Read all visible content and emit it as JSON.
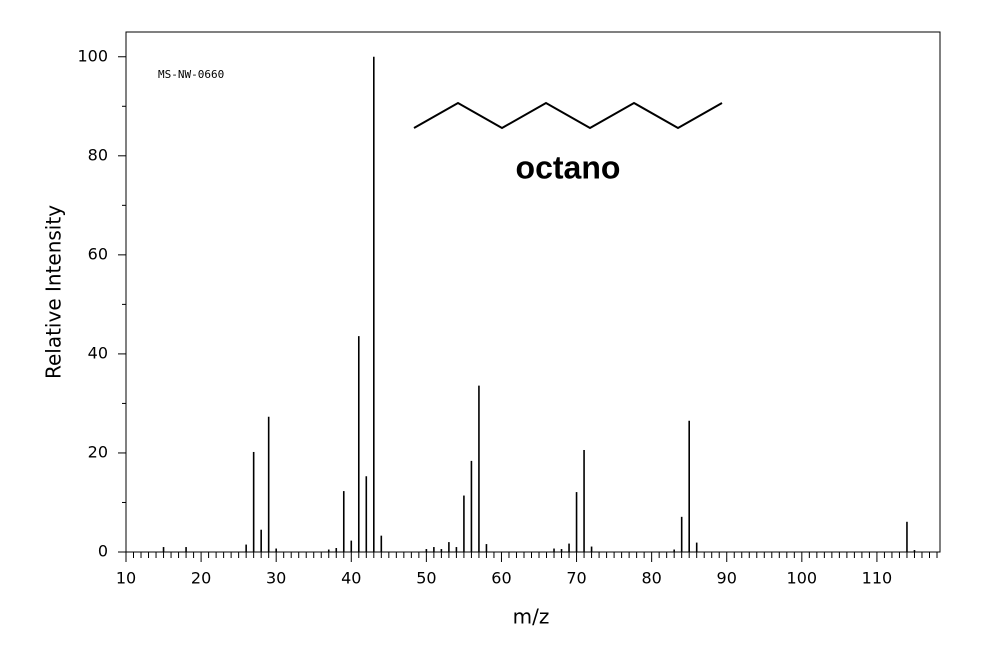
{
  "chart_data": {
    "type": "spectrum",
    "code": "MS-NW-0660",
    "compound": "octano",
    "xlabel": "m/z",
    "ylabel": "Relative Intensity",
    "x": [
      15,
      18,
      26,
      27,
      28,
      29,
      30,
      37,
      38,
      39,
      40,
      41,
      42,
      43,
      44,
      50,
      51,
      52,
      53,
      54,
      55,
      56,
      57,
      58,
      67,
      68,
      69,
      70,
      71,
      72,
      83,
      84,
      85,
      86,
      114,
      115
    ],
    "values": [
      1,
      1,
      1.5,
      20.2,
      4.5,
      27.3,
      0.7,
      0.5,
      0.8,
      12.3,
      2.3,
      43.6,
      15.3,
      100,
      3.3,
      0.6,
      1,
      0.6,
      2,
      1,
      11.4,
      18.4,
      33.6,
      1.6,
      0.7,
      0.6,
      1.7,
      12.1,
      20.6,
      1.1,
      0.5,
      7.1,
      26.5,
      1.9,
      6.1,
      0.4
    ],
    "color": "#000000",
    "xlim": [
      10,
      118.4
    ],
    "ylim": [
      0,
      105
    ],
    "xticks": [
      10,
      20,
      30,
      40,
      50,
      60,
      70,
      80,
      90,
      100,
      110
    ],
    "yticks": [
      0,
      20,
      40,
      60,
      80,
      100
    ]
  }
}
